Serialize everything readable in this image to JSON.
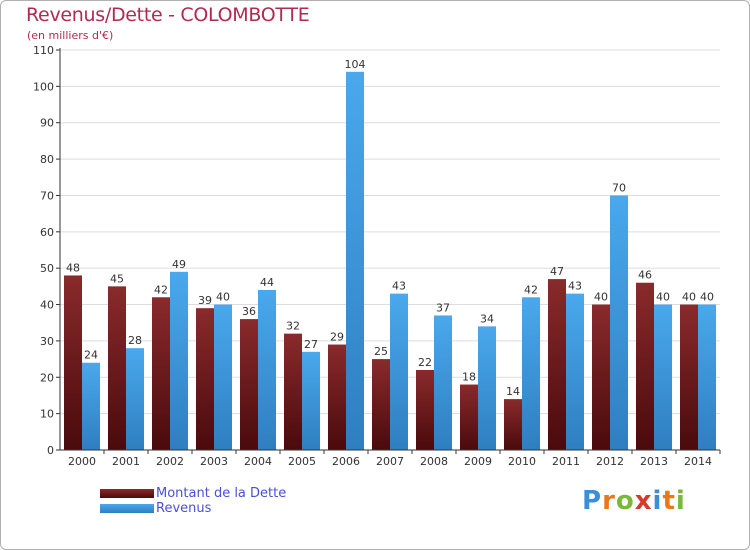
{
  "title": "Revenus/Dette - COLOMBOTTE",
  "subtitle": "(en milliers d'€)",
  "logo": {
    "letters": [
      "P",
      "r",
      "o",
      "x",
      "i",
      "t",
      "i"
    ],
    "colors": [
      "#3a8fd8",
      "#e8781e",
      "#7ab83a",
      "#d83a2a",
      "#3a8fd8",
      "#e8781e",
      "#7ab83a"
    ]
  },
  "legend": [
    {
      "label": "Montant de la Dette",
      "color": "#7a1f22"
    },
    {
      "label": "Revenus",
      "color": "#3d9ae0"
    }
  ],
  "colors": {
    "dette": "#7a1f22",
    "revenus": "#3d9ae0",
    "grid": "#dddddd",
    "axis": "#333333"
  },
  "chart_data": {
    "type": "bar",
    "title": "Revenus/Dette - COLOMBOTTE",
    "subtitle": "(en milliers d'€)",
    "categories": [
      "2000",
      "2001",
      "2002",
      "2003",
      "2004",
      "2005",
      "2006",
      "2007",
      "2008",
      "2009",
      "2010",
      "2011",
      "2012",
      "2013",
      "2014"
    ],
    "series": [
      {
        "name": "Montant de la Dette",
        "values": [
          48,
          45,
          42,
          39,
          36,
          32,
          29,
          25,
          22,
          18,
          14,
          47,
          40,
          46,
          40
        ]
      },
      {
        "name": "Revenus",
        "values": [
          24,
          28,
          49,
          40,
          44,
          27,
          104,
          43,
          37,
          34,
          42,
          43,
          70,
          40,
          40
        ]
      }
    ],
    "ylim": [
      0,
      110
    ],
    "yticks": [
      0,
      10,
      20,
      30,
      40,
      50,
      60,
      70,
      80,
      90,
      100,
      110
    ],
    "grid": true,
    "legend_position": "bottom-left"
  }
}
